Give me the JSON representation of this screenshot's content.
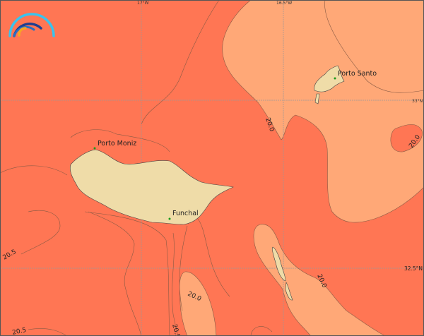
{
  "map": {
    "colors": {
      "warm": "#FF7654",
      "cool": "#FFA877",
      "land": "#EFDCA8",
      "contour": "#8a5a44",
      "city_dot": "#1a9a1a"
    },
    "longitude_labels": [
      "17°W",
      "16.5°W"
    ],
    "latitude_labels": [
      "33°N",
      "32.5°N"
    ],
    "cities": [
      "Porto Santo",
      "Porto Moniz",
      "Funchal"
    ],
    "contour_labels": [
      "20.0",
      "20.0",
      "20.0",
      "20.0",
      "20.5",
      "20.5",
      "20.5"
    ],
    "logo": "rainbow-arcs-logo"
  }
}
